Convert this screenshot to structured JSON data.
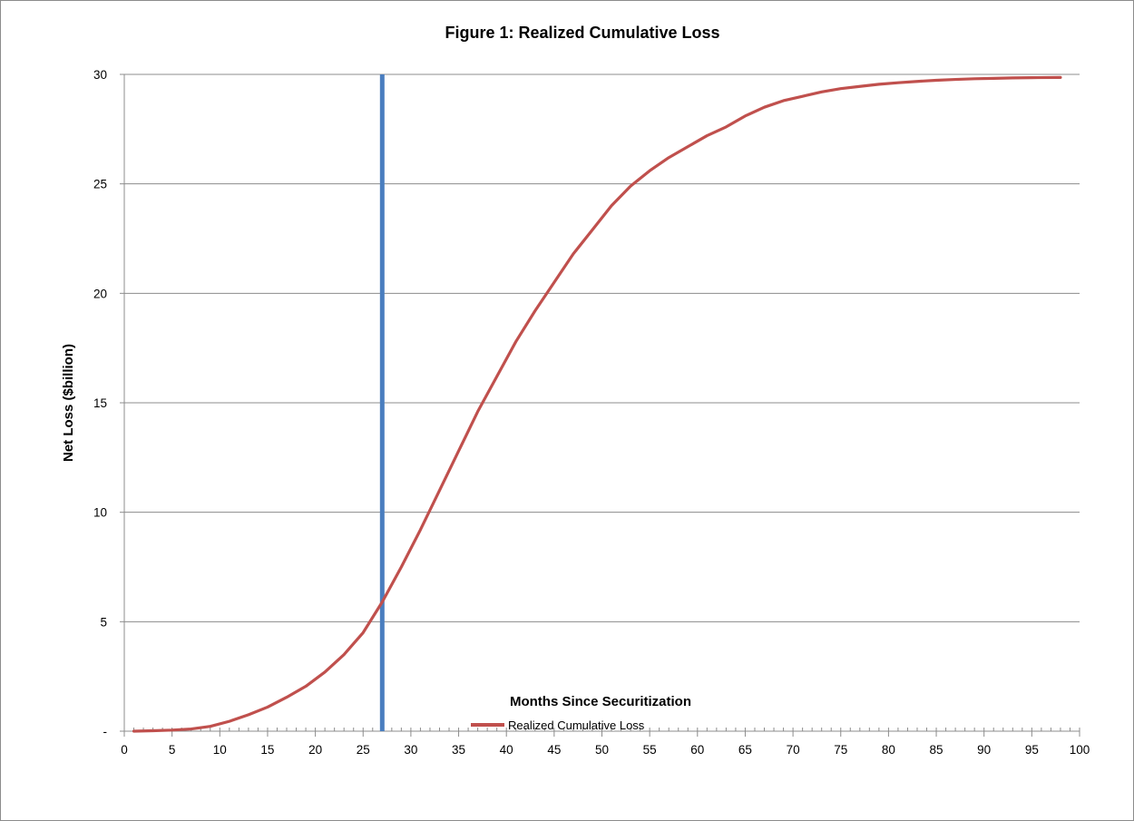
{
  "chart_data": {
    "type": "line",
    "title": "Figure 1: Realized Cumulative Loss",
    "xlabel": "Months Since Securitization",
    "ylabel": "Net Loss  ($billion)",
    "xlim": [
      0,
      100
    ],
    "ylim": [
      0,
      30
    ],
    "x_ticks": [
      0,
      5,
      10,
      15,
      20,
      25,
      30,
      35,
      40,
      45,
      50,
      55,
      60,
      65,
      70,
      75,
      80,
      85,
      90,
      95,
      100
    ],
    "x_tick_labels": [
      "0",
      "5",
      "10",
      "15",
      "20",
      "25",
      "30",
      "35",
      "40",
      "45",
      "50",
      "55",
      "60",
      "65",
      "70",
      "75",
      "80",
      "85",
      "90",
      "95",
      "100"
    ],
    "x_minor_tick_step": 1,
    "y_ticks": [
      0,
      5,
      10,
      15,
      20,
      25,
      30
    ],
    "y_tick_labels": [
      "-",
      "5",
      "10",
      "15",
      "20",
      "25",
      "30"
    ],
    "grid": "horizontal",
    "legend_position": "bottom",
    "reference_line": {
      "x": 27,
      "color": "#4a7ebf"
    },
    "series": [
      {
        "name": "Realized Cumulative Loss",
        "color": "#c0504d",
        "x": [
          1,
          3,
          5,
          7,
          9,
          11,
          13,
          15,
          17,
          19,
          21,
          23,
          25,
          27,
          29,
          31,
          33,
          35,
          37,
          39,
          41,
          43,
          45,
          47,
          49,
          51,
          53,
          55,
          57,
          59,
          61,
          63,
          65,
          67,
          69,
          71,
          73,
          75,
          77,
          79,
          81,
          83,
          85,
          87,
          89,
          91,
          93,
          95,
          98
        ],
        "values": [
          0.0,
          0.02,
          0.05,
          0.1,
          0.22,
          0.45,
          0.75,
          1.1,
          1.55,
          2.05,
          2.7,
          3.5,
          4.5,
          5.9,
          7.5,
          9.2,
          11.0,
          12.8,
          14.6,
          16.2,
          17.8,
          19.2,
          20.5,
          21.8,
          22.9,
          24.0,
          24.9,
          25.6,
          26.2,
          26.7,
          27.2,
          27.6,
          28.1,
          28.5,
          28.8,
          29.0,
          29.2,
          29.35,
          29.45,
          29.55,
          29.62,
          29.68,
          29.73,
          29.77,
          29.8,
          29.82,
          29.84,
          29.85,
          29.86
        ]
      }
    ]
  }
}
